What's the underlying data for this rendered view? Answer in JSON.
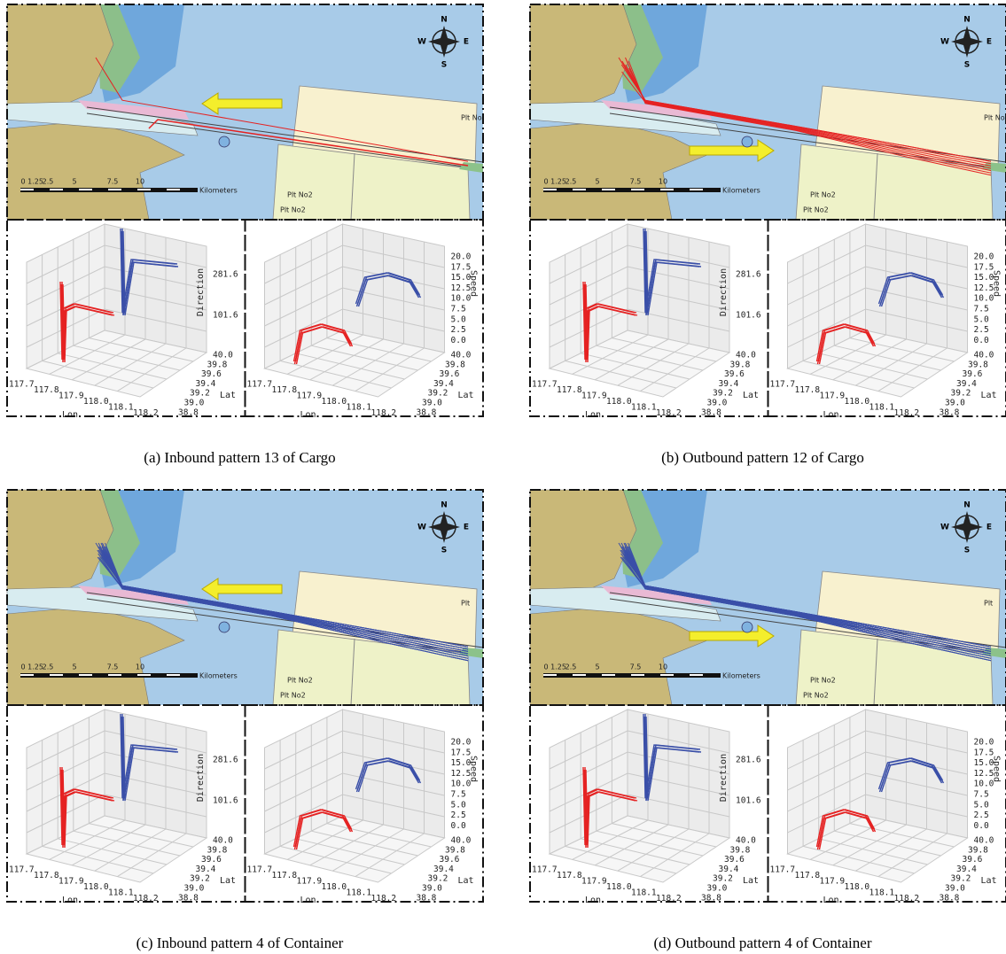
{
  "panels": [
    {
      "caption": "(a) Inbound pattern 13 of Cargo",
      "map": {
        "compass": {
          "n": "N",
          "e": "E",
          "s": "S",
          "w": "W"
        },
        "scale": [
          "0",
          "1.25",
          "2.5",
          "5",
          "7.5",
          "10"
        ],
        "scale_unit": "Kilometers",
        "place_labels": [
          "Plt No2",
          "Plt No2",
          "Plt No"
        ]
      },
      "direction_plot": {
        "z_label": "Direction",
        "z_ticks": [
          "281.6",
          "101.6"
        ],
        "x_label": "Lon",
        "x_ticks": [
          "117.7",
          "117.8",
          "117.9",
          "118.0",
          "118.1",
          "118.2"
        ],
        "y_label": "Lat",
        "y_ticks": [
          "40.0",
          "39.8",
          "39.6",
          "39.4",
          "39.2",
          "39.0",
          "38.8"
        ]
      },
      "speed_plot": {
        "z_label": "Speed",
        "z_ticks": [
          "20.0",
          "17.5",
          "15.0",
          "12.5",
          "10.0",
          "7.5",
          "5.0",
          "2.5",
          "0.0"
        ],
        "x_label": "Lon",
        "x_ticks": [
          "117.7",
          "117.8",
          "117.9",
          "118.0",
          "118.1",
          "118.2"
        ],
        "y_label": "Lat",
        "y_ticks": [
          "40.0",
          "39.8",
          "39.6",
          "39.4",
          "39.2",
          "39.0",
          "38.8"
        ]
      }
    },
    {
      "caption": "(b) Outbound pattern 12 of Cargo",
      "map": {
        "compass": {
          "n": "N",
          "e": "E",
          "s": "S",
          "w": "W"
        },
        "scale": [
          "0",
          "1.25",
          "2.5",
          "5",
          "7.5",
          "10"
        ],
        "scale_unit": "Kilometers",
        "place_labels": [
          "Plt No2",
          "Plt No2",
          "Plt No"
        ]
      },
      "direction_plot": {
        "z_label": "Direction",
        "z_ticks": [
          "281.6",
          "101.6"
        ],
        "x_label": "Lon",
        "x_ticks": [
          "117.7",
          "117.8",
          "117.9",
          "118.0",
          "118.1",
          "118.2"
        ],
        "y_label": "Lat",
        "y_ticks": [
          "40.0",
          "39.8",
          "39.6",
          "39.4",
          "39.2",
          "39.0",
          "38.8"
        ]
      },
      "speed_plot": {
        "z_label": "Speed",
        "z_ticks": [
          "20.0",
          "17.5",
          "15.0",
          "12.5",
          "10.0",
          "7.5",
          "5.0",
          "2.5",
          "0.0"
        ],
        "x_label": "Lon",
        "x_ticks": [
          "117.7",
          "117.8",
          "117.9",
          "118.0",
          "118.1",
          "118.2"
        ],
        "y_label": "Lat",
        "y_ticks": [
          "40.0",
          "39.8",
          "39.6",
          "39.4",
          "39.2",
          "39.0",
          "38.8"
        ]
      }
    },
    {
      "caption": "(c) Inbound pattern 4 of Container",
      "map": {
        "compass": {
          "n": "N",
          "e": "E",
          "s": "S",
          "w": "W"
        },
        "scale": [
          "0",
          "1.25",
          "2.5",
          "5",
          "7.5",
          "10"
        ],
        "scale_unit": "Kilometers",
        "place_labels": [
          "Plt No2",
          "Plt No2",
          "Plt"
        ]
      },
      "direction_plot": {
        "z_label": "Direction",
        "z_ticks": [
          "281.6",
          "101.6"
        ],
        "x_label": "Lon",
        "x_ticks": [
          "117.7",
          "117.8",
          "117.9",
          "118.0",
          "118.1",
          "118.2"
        ],
        "y_label": "Lat",
        "y_ticks": [
          "40.0",
          "39.8",
          "39.6",
          "39.4",
          "39.2",
          "39.0",
          "38.8"
        ]
      },
      "speed_plot": {
        "z_label": "Speed",
        "z_ticks": [
          "20.0",
          "17.5",
          "15.0",
          "12.5",
          "10.0",
          "7.5",
          "5.0",
          "2.5",
          "0.0"
        ],
        "x_label": "Lon",
        "x_ticks": [
          "117.7",
          "117.8",
          "117.9",
          "118.0",
          "118.1",
          "118.2"
        ],
        "y_label": "Lat",
        "y_ticks": [
          "40.0",
          "39.8",
          "39.6",
          "39.4",
          "39.2",
          "39.0",
          "38.8"
        ]
      }
    },
    {
      "caption": "(d) Outbound pattern 4 of Container",
      "map": {
        "compass": {
          "n": "N",
          "e": "E",
          "s": "S",
          "w": "W"
        },
        "scale": [
          "0",
          "1.25",
          "2.5",
          "5",
          "7.5",
          "10"
        ],
        "scale_unit": "Kilometers",
        "place_labels": [
          "Plt No2",
          "Plt No2",
          "Plt"
        ]
      },
      "direction_plot": {
        "z_label": "Direction",
        "z_ticks": [
          "281.6",
          "101.6"
        ],
        "x_label": "Lon",
        "x_ticks": [
          "117.7",
          "117.8",
          "117.9",
          "118.0",
          "118.1",
          "118.2"
        ],
        "y_label": "Lat",
        "y_ticks": [
          "40.0",
          "39.8",
          "39.6",
          "39.4",
          "39.2",
          "39.0",
          "38.8"
        ]
      },
      "speed_plot": {
        "z_label": "Speed",
        "z_ticks": [
          "20.0",
          "17.5",
          "15.0",
          "12.5",
          "10.0",
          "7.5",
          "5.0",
          "2.5",
          "0.0"
        ],
        "x_label": "Lon",
        "x_ticks": [
          "117.7",
          "117.8",
          "117.9",
          "118.0",
          "118.1",
          "118.2"
        ],
        "y_label": "Lat",
        "y_ticks": [
          "40.0",
          "39.8",
          "39.6",
          "39.4",
          "39.2",
          "39.0",
          "38.8"
        ]
      }
    }
  ]
}
